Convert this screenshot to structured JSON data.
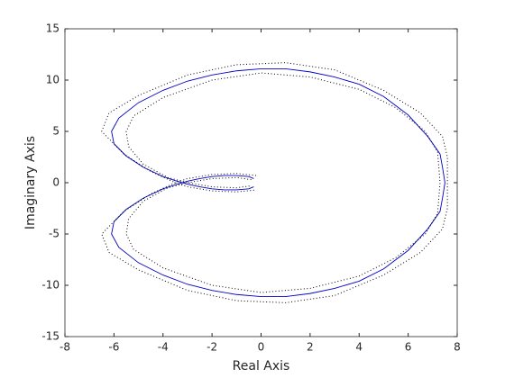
{
  "chart_data": {
    "type": "line",
    "xlabel": "Real Axis",
    "ylabel": "Imaginary Axis",
    "xlim": [
      -8,
      8
    ],
    "ylim": [
      -15,
      15
    ],
    "xticks": [
      -8,
      -6,
      -4,
      -2,
      0,
      2,
      4,
      6,
      8
    ],
    "yticks": [
      -15,
      -10,
      -5,
      0,
      5,
      10,
      15
    ],
    "grid": false,
    "series": [
      {
        "color": "#0000c8",
        "line_style": "solid",
        "x": [
          -0.3,
          -0.5,
          -1,
          -1.5,
          -2,
          -2.5,
          -3,
          -3.5,
          -4,
          -4.8,
          -5.5,
          -6,
          -6.1,
          -5.8,
          -5,
          -4,
          -3,
          -2,
          -1,
          0,
          1,
          2,
          3,
          4,
          5,
          6,
          6.8,
          7.3,
          7.4,
          7.5,
          7.4,
          7.3,
          6.8,
          6,
          5,
          4,
          3,
          2,
          1,
          0,
          -1,
          -2,
          -3,
          -4,
          -5,
          -5.8,
          -6.1,
          -6,
          -5.5,
          -4.8,
          -4,
          -3.5,
          -3,
          -2.5,
          -2,
          -1.5,
          -1,
          -0.5,
          -0.3
        ],
        "values": [
          0.4,
          0.6,
          0.7,
          0.7,
          0.6,
          0.4,
          0.15,
          -0.2,
          -0.6,
          -1.5,
          -2.6,
          -3.8,
          -5,
          -6.3,
          -7.8,
          -9,
          -9.9,
          -10.5,
          -10.9,
          -11.1,
          -11.1,
          -10.8,
          -10.3,
          -9.6,
          -8.4,
          -6.6,
          -4.5,
          -2.8,
          -1.5,
          0,
          1.5,
          2.8,
          4.5,
          6.6,
          8.4,
          9.6,
          10.3,
          10.8,
          11.1,
          11.1,
          10.9,
          10.5,
          9.9,
          9,
          7.8,
          6.3,
          5,
          3.8,
          2.6,
          1.5,
          0.6,
          0.2,
          -0.15,
          -0.4,
          -0.6,
          -0.7,
          -0.7,
          -0.6,
          -0.4
        ]
      },
      {
        "color": "#000000",
        "line_style": "dotted",
        "x": [
          -0.2,
          -1,
          -2,
          -3,
          -3.5,
          -4.5,
          -5.6,
          -6.5,
          -6.2,
          -5,
          -3,
          -1,
          1,
          3,
          5,
          6.5,
          7.4,
          7.6,
          7.6,
          7.6,
          7.4,
          6.5,
          5,
          3,
          1,
          -1,
          -3,
          -5,
          -6.2,
          -6.5,
          -5.6,
          -4.5,
          -3.5,
          -3,
          -2,
          -1,
          -0.2
        ],
        "values": [
          0.7,
          0.9,
          0.8,
          0.4,
          0,
          -1.1,
          -2.8,
          -5,
          -6.8,
          -8.5,
          -10.5,
          -11.5,
          -11.7,
          -11,
          -9,
          -6.8,
          -4.5,
          -2.5,
          0,
          2.5,
          4.5,
          6.8,
          9,
          11,
          11.7,
          11.5,
          10.5,
          8.5,
          6.8,
          5,
          2.8,
          1.1,
          0,
          -0.4,
          -0.8,
          -0.9,
          -0.7
        ]
      },
      {
        "color": "#000000",
        "line_style": "dotted",
        "x": [
          -0.4,
          -1,
          -2,
          -3,
          -3.8,
          -4.8,
          -5.4,
          -5.5,
          -5.2,
          -4,
          -2,
          0,
          2,
          4,
          5.5,
          6.7,
          7.2,
          7.3,
          7.2,
          6.7,
          5.5,
          4,
          2,
          0,
          -2,
          -4,
          -5.2,
          -5.5,
          -5.4,
          -4.8,
          -3.8,
          -3,
          -2,
          -1,
          -0.4
        ],
        "values": [
          0.3,
          0.5,
          0.4,
          0,
          -0.5,
          -1.8,
          -3.5,
          -5,
          -6.5,
          -8.3,
          -10,
          -10.7,
          -10.3,
          -9.1,
          -7.3,
          -5,
          -3,
          0,
          3,
          5,
          7.3,
          9.1,
          10.3,
          10.7,
          10,
          8.3,
          6.5,
          5,
          3.5,
          1.8,
          0.5,
          0,
          -0.4,
          -0.5,
          -0.3
        ]
      }
    ]
  }
}
